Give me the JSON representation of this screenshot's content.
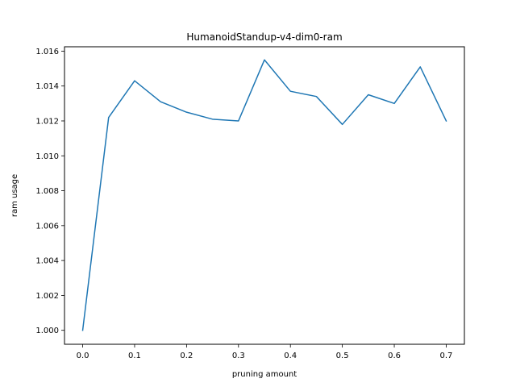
{
  "chart_data": {
    "type": "line",
    "title": "HumanoidStandup-v4-dim0-ram",
    "xlabel": "pruning amount",
    "ylabel": "ram usage",
    "xlim": [
      -0.035,
      0.735
    ],
    "ylim": [
      0.9992,
      1.01625
    ],
    "grid": false,
    "x_ticks": [
      0.0,
      0.1,
      0.2,
      0.3,
      0.4,
      0.5,
      0.6,
      0.7
    ],
    "x_tick_labels": [
      "0.0",
      "0.1",
      "0.2",
      "0.3",
      "0.4",
      "0.5",
      "0.6",
      "0.7"
    ],
    "y_ticks": [
      1.0,
      1.002,
      1.004,
      1.006,
      1.008,
      1.01,
      1.012,
      1.014,
      1.016
    ],
    "y_tick_labels": [
      "1.000",
      "1.002",
      "1.004",
      "1.006",
      "1.008",
      "1.010",
      "1.012",
      "1.014",
      "1.016"
    ],
    "series": [
      {
        "color": "#1f77b4",
        "x": [
          0.0,
          0.05,
          0.1,
          0.15,
          0.2,
          0.25,
          0.3,
          0.35,
          0.4,
          0.45,
          0.5,
          0.55,
          0.6,
          0.65,
          0.7
        ],
        "values": [
          1.0,
          1.0122,
          1.0143,
          1.0131,
          1.0125,
          1.0121,
          1.012,
          1.0155,
          1.0137,
          1.0134,
          1.0118,
          1.0135,
          1.013,
          1.0151,
          1.012
        ]
      }
    ]
  }
}
